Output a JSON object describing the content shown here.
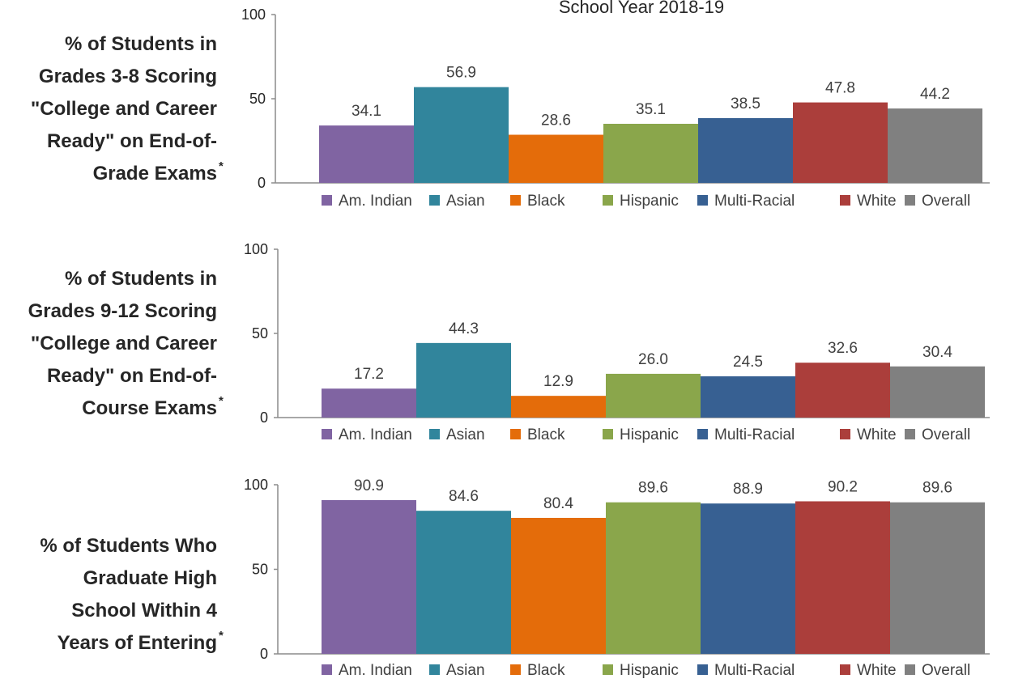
{
  "subtitle": "School Year 2018-19",
  "categories": [
    "Am. Indian",
    "Asian",
    "Black",
    "Hispanic",
    "Multi-Racial",
    "White",
    "Overall"
  ],
  "colors": [
    "#8064a2",
    "#31859c",
    "#e46c0a",
    "#8aa64b",
    "#376092",
    "#ab3e3b",
    "#808080"
  ],
  "chart_data": [
    {
      "type": "bar",
      "title_lines": [
        "% of Students in",
        "Grades 3-8 Scoring",
        "\"College and Career",
        "Ready\" on End-of-",
        "Grade Exams"
      ],
      "title_mark": "*",
      "categories": [
        "Am. Indian",
        "Asian",
        "Black",
        "Hispanic",
        "Multi-Racial",
        "White",
        "Overall"
      ],
      "values": [
        34.1,
        56.9,
        28.6,
        35.1,
        38.5,
        47.8,
        44.2
      ],
      "labels": [
        "34.1",
        "56.9",
        "28.6",
        "35.1",
        "38.5",
        "47.8",
        "44.2"
      ],
      "yticks": [
        "0",
        "50",
        "100"
      ],
      "ylim": [
        0,
        100
      ],
      "legend": "bottom",
      "grid": false
    },
    {
      "type": "bar",
      "title_lines": [
        "% of Students in",
        "Grades 9-12 Scoring",
        "\"College and Career",
        "Ready\" on End-of-",
        "Course Exams"
      ],
      "title_mark": "*",
      "categories": [
        "Am. Indian",
        "Asian",
        "Black",
        "Hispanic",
        "Multi-Racial",
        "White",
        "Overall"
      ],
      "values": [
        17.2,
        44.3,
        12.9,
        26.0,
        24.5,
        32.6,
        30.4
      ],
      "labels": [
        "17.2",
        "44.3",
        "12.9",
        "26.0",
        "24.5",
        "32.6",
        "30.4"
      ],
      "yticks": [
        "0",
        "50",
        "100"
      ],
      "ylim": [
        0,
        100
      ],
      "legend": "bottom",
      "grid": false
    },
    {
      "type": "bar",
      "title_lines": [
        "% of Students Who",
        "Graduate High",
        "School Within 4",
        "Years of Entering"
      ],
      "title_mark": "*",
      "categories": [
        "Am. Indian",
        "Asian",
        "Black",
        "Hispanic",
        "Multi-Racial",
        "White",
        "Overall"
      ],
      "values": [
        90.9,
        84.6,
        80.4,
        89.6,
        88.9,
        90.2,
        89.6
      ],
      "labels": [
        "90.9",
        "84.6",
        "80.4",
        "89.6",
        "88.9",
        "90.2",
        "89.6"
      ],
      "yticks": [
        "0",
        "50",
        "100"
      ],
      "ylim": [
        0,
        100
      ],
      "legend": "bottom",
      "grid": false
    }
  ]
}
